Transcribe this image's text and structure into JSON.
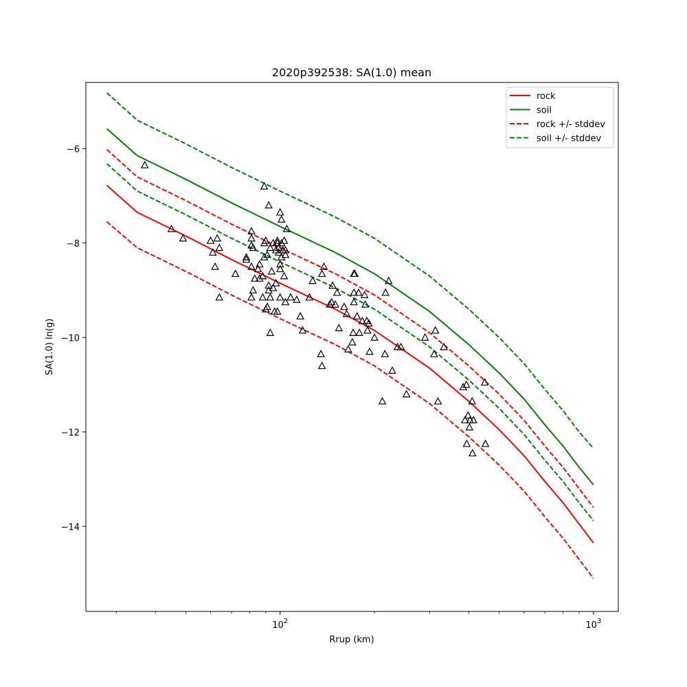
{
  "chart_data": {
    "type": "line",
    "title": "2020p392538: SA(1.0) mean",
    "xlabel": "Rrup (km)",
    "ylabel": "SA(1.0) ln(g)",
    "xscale": "log",
    "xlim": [
      24,
      1200
    ],
    "ylim": [
      -15.8,
      -4.6
    ],
    "x_ticks": [
      {
        "value": 100,
        "base": "10",
        "exp": "2"
      },
      {
        "value": 1000,
        "base": "10",
        "exp": "3"
      }
    ],
    "y_ticks": [
      {
        "value": -6,
        "label": "−6"
      },
      {
        "value": -8,
        "label": "−8"
      },
      {
        "value": -10,
        "label": "−10"
      },
      {
        "value": -12,
        "label": "−12"
      },
      {
        "value": -14,
        "label": "−14"
      }
    ],
    "grid": false,
    "legend_position": "top-right",
    "series": [
      {
        "name": "rock",
        "color": "#ff0000",
        "style": "solid",
        "x": [
          28,
          35,
          50,
          70,
          100,
          150,
          200,
          300,
          400,
          500,
          600,
          700,
          800,
          900,
          1000
        ],
        "y": [
          -6.78,
          -7.35,
          -7.85,
          -8.35,
          -8.85,
          -9.4,
          -9.85,
          -10.65,
          -11.35,
          -11.95,
          -12.5,
          -13.05,
          -13.5,
          -13.95,
          -14.35
        ]
      },
      {
        "name": "soil",
        "color": "#008000",
        "style": "solid",
        "x": [
          28,
          35,
          50,
          70,
          100,
          150,
          200,
          300,
          400,
          500,
          600,
          700,
          800,
          900,
          1000
        ],
        "y": [
          -5.58,
          -6.15,
          -6.65,
          -7.15,
          -7.65,
          -8.2,
          -8.65,
          -9.45,
          -10.15,
          -10.75,
          -11.3,
          -11.85,
          -12.3,
          -12.75,
          -13.12
        ]
      },
      {
        "name": "rock +/- stddev",
        "color": "#ff0000",
        "style": "dashed",
        "x": [
          28,
          35,
          50,
          70,
          100,
          150,
          200,
          300,
          400,
          500,
          600,
          700,
          800,
          900,
          1000
        ],
        "y": [
          -6.02,
          -6.6,
          -7.1,
          -7.6,
          -8.1,
          -8.65,
          -9.1,
          -9.9,
          -10.6,
          -11.2,
          -11.75,
          -12.3,
          -12.75,
          -13.2,
          -13.6
        ]
      },
      {
        "name": "",
        "color": "#ff0000",
        "style": "dashed",
        "x": [
          28,
          35,
          50,
          70,
          100,
          150,
          200,
          300,
          400,
          500,
          600,
          700,
          800,
          900,
          1000
        ],
        "y": [
          -7.55,
          -8.1,
          -8.6,
          -9.1,
          -9.6,
          -10.15,
          -10.6,
          -11.4,
          -12.1,
          -12.7,
          -13.25,
          -13.8,
          -14.25,
          -14.7,
          -15.1
        ]
      },
      {
        "name": "soil +/- stddev",
        "color": "#008000",
        "style": "dashed",
        "x": [
          28,
          35,
          50,
          70,
          100,
          150,
          200,
          300,
          400,
          500,
          600,
          700,
          800,
          900,
          1000
        ],
        "y": [
          -4.82,
          -5.4,
          -5.9,
          -6.4,
          -6.9,
          -7.45,
          -7.9,
          -8.7,
          -9.4,
          -10.0,
          -10.55,
          -11.1,
          -11.55,
          -12.0,
          -12.35
        ]
      },
      {
        "name": "",
        "color": "#008000",
        "style": "dashed",
        "x": [
          28,
          35,
          50,
          70,
          100,
          150,
          200,
          300,
          400,
          500,
          600,
          700,
          800,
          900,
          1000
        ],
        "y": [
          -6.32,
          -6.9,
          -7.4,
          -7.9,
          -8.4,
          -8.95,
          -9.4,
          -10.2,
          -10.9,
          -11.5,
          -12.05,
          -12.6,
          -13.05,
          -13.5,
          -13.88
        ]
      }
    ],
    "observations": {
      "marker": "open-triangle",
      "color": "#000000",
      "points": [
        [
          37,
          -6.35
        ],
        [
          45,
          -7.7
        ],
        [
          49,
          -7.9
        ],
        [
          60,
          -7.95
        ],
        [
          61,
          -8.2
        ],
        [
          62,
          -8.5
        ],
        [
          63,
          -7.9
        ],
        [
          64,
          -8.1
        ],
        [
          64,
          -9.15
        ],
        [
          72,
          -8.65
        ],
        [
          78,
          -8.35
        ],
        [
          78,
          -8.3
        ],
        [
          81,
          -7.75
        ],
        [
          81,
          -7.9
        ],
        [
          81,
          -8.05
        ],
        [
          81,
          -8.5
        ],
        [
          81,
          -9.15
        ],
        [
          82,
          -8.1
        ],
        [
          82,
          -9.0
        ],
        [
          83,
          -8.75
        ],
        [
          85,
          -8.55
        ],
        [
          86,
          -8.45
        ],
        [
          86,
          -8.75
        ],
        [
          88,
          -9.15
        ],
        [
          88,
          -8.7
        ],
        [
          89,
          -8.3
        ],
        [
          89,
          -8.0
        ],
        [
          89,
          -6.8
        ],
        [
          90,
          -9.4
        ],
        [
          90,
          -7.95
        ],
        [
          91,
          -8.25
        ],
        [
          91,
          -9.35
        ],
        [
          92,
          -7.2
        ],
        [
          92,
          -8.9
        ],
        [
          92,
          -9.0
        ],
        [
          93,
          -8.1
        ],
        [
          93,
          -9.9
        ],
        [
          93,
          -9.15
        ],
        [
          94,
          -8.6
        ],
        [
          95,
          -8.95
        ],
        [
          95,
          -8.0
        ],
        [
          96,
          -9.45
        ],
        [
          97,
          -8.15
        ],
        [
          97,
          -8.85
        ],
        [
          98,
          -9.45
        ],
        [
          98,
          -8.0
        ],
        [
          98,
          -7.95
        ],
        [
          99,
          -8.1
        ],
        [
          99,
          -8.2
        ],
        [
          100,
          -8.55
        ],
        [
          100,
          -9.15
        ],
        [
          100,
          -7.35
        ],
        [
          100,
          -8.45
        ],
        [
          101,
          -7.5
        ],
        [
          101,
          -8.0
        ],
        [
          101,
          -8.3
        ],
        [
          102,
          -8.15
        ],
        [
          103,
          -8.7
        ],
        [
          103,
          -7.95
        ],
        [
          104,
          -8.25
        ],
        [
          104,
          -8.15
        ],
        [
          104,
          -9.25
        ],
        [
          105,
          -7.7
        ],
        [
          108,
          -9.15
        ],
        [
          113,
          -9.2
        ],
        [
          116,
          -9.55
        ],
        [
          118,
          -9.85
        ],
        [
          124,
          -9.15
        ],
        [
          127,
          -8.8
        ],
        [
          135,
          -10.35
        ],
        [
          136,
          -8.65
        ],
        [
          136,
          -10.6
        ],
        [
          138,
          -8.5
        ],
        [
          144,
          -9.3
        ],
        [
          146,
          -9.25
        ],
        [
          147,
          -8.9
        ],
        [
          150,
          -9.3
        ],
        [
          152,
          -9.05
        ],
        [
          154,
          -9.8
        ],
        [
          160,
          -9.35
        ],
        [
          163,
          -9.5
        ],
        [
          165,
          -10.25
        ],
        [
          170,
          -10.1
        ],
        [
          171,
          -9.9
        ],
        [
          172,
          -8.65
        ],
        [
          172,
          -9.25
        ],
        [
          172,
          -9.05
        ],
        [
          173,
          -8.65
        ],
        [
          176,
          -9.55
        ],
        [
          178,
          -9.05
        ],
        [
          179,
          -9.9
        ],
        [
          183,
          -9.65
        ],
        [
          186,
          -9.1
        ],
        [
          187,
          -9.3
        ],
        [
          189,
          -9.65
        ],
        [
          190,
          -9.85
        ],
        [
          192,
          -9.7
        ],
        [
          193,
          -10.3
        ],
        [
          200,
          -10.0
        ],
        [
          212,
          -11.35
        ],
        [
          216,
          -10.35
        ],
        [
          217,
          -9.05
        ],
        [
          222,
          -8.8
        ],
        [
          228,
          -10.7
        ],
        [
          237,
          -10.2
        ],
        [
          243,
          -10.2
        ],
        [
          253,
          -11.2
        ],
        [
          290,
          -10.0
        ],
        [
          310,
          -10.35
        ],
        [
          313,
          -9.85
        ],
        [
          319,
          -11.35
        ],
        [
          333,
          -10.2
        ],
        [
          384,
          -11.05
        ],
        [
          389,
          -11.75
        ],
        [
          393,
          -11.0
        ],
        [
          394,
          -12.25
        ],
        [
          398,
          -11.65
        ],
        [
          402,
          -11.9
        ],
        [
          404,
          -11.75
        ],
        [
          410,
          -11.35
        ],
        [
          411,
          -12.45
        ],
        [
          414,
          -11.75
        ],
        [
          450,
          -10.95
        ],
        [
          452,
          -12.25
        ]
      ]
    }
  }
}
